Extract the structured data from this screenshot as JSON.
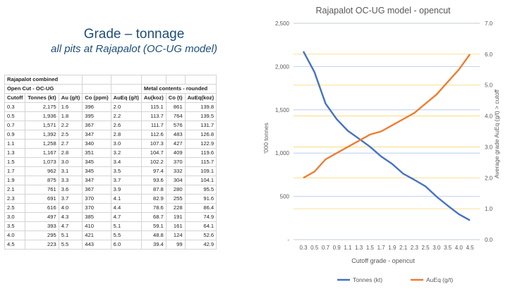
{
  "headline": {
    "title": "Grade – tonnage",
    "subtitle": "all pits at Rajapalot (OC-UG model)"
  },
  "table": {
    "section1": "Rajapalot combined",
    "section2": "Open Cut - OC-UG",
    "metal_header": "Metal contents - rounded",
    "columns": [
      "Cutoff",
      "Tonnes (kt)",
      "Au (g/t)",
      "Co (ppm)",
      "AuEq (g/t)",
      "Au(koz)",
      "Co (t)",
      "AuEq(koz)"
    ],
    "rows": [
      [
        "0.3",
        "2,175",
        "1.6",
        "396",
        "2.0",
        "115.1",
        "861",
        "139.8"
      ],
      [
        "0.5",
        "1,936",
        "1.8",
        "395",
        "2.2",
        "113.7",
        "764",
        "139.5"
      ],
      [
        "0.7",
        "1,571",
        "2.2",
        "367",
        "2.6",
        "111.7",
        "576",
        "131.7"
      ],
      [
        "0.9",
        "1,392",
        "2.5",
        "347",
        "2.8",
        "112.6",
        "483",
        "126.8"
      ],
      [
        "1.1",
        "1,258",
        "2.7",
        "340",
        "3.0",
        "107.3",
        "427",
        "122.9"
      ],
      [
        "1.3",
        "1,167",
        "2.8",
        "351",
        "3.2",
        "104.7",
        "409",
        "119.6"
      ],
      [
        "1.5",
        "1,073",
        "3.0",
        "345",
        "3.4",
        "102.2",
        "370",
        "115.7"
      ],
      [
        "1.7",
        "962",
        "3.1",
        "345",
        "3.5",
        "97.4",
        "332",
        "109.1"
      ],
      [
        "1.9",
        "875",
        "3.3",
        "347",
        "3.7",
        "93.6",
        "304",
        "104.1"
      ],
      [
        "2.1",
        "761",
        "3.6",
        "367",
        "3.9",
        "87.8",
        "280",
        "95.5"
      ],
      [
        "2.3",
        "691",
        "3.7",
        "370",
        "4.1",
        "82.9",
        "255",
        "91.6"
      ],
      [
        "2.5",
        "616",
        "4.0",
        "370",
        "4.4",
        "78.6",
        "228",
        "86.4"
      ],
      [
        "3.0",
        "497",
        "4.3",
        "385",
        "4.7",
        "68.7",
        "191",
        "74.9"
      ],
      [
        "3.5",
        "393",
        "4.7",
        "410",
        "5.1",
        "59.1",
        "161",
        "64.1"
      ],
      [
        "4.0",
        "295",
        "5.1",
        "421",
        "5.5",
        "48.8",
        "124",
        "52.6"
      ],
      [
        "4.5",
        "223",
        "5.5",
        "443",
        "6.0",
        "39.4",
        "99",
        "42.9"
      ]
    ]
  },
  "chart_data": {
    "type": "line",
    "title": "Rajapalot OC-UG model - opencut",
    "xlabel": "Cutoff grade - opencut",
    "ylabel": "'000 tonnes",
    "y2label": "Average grade AuEq (g/t) > cutoff",
    "categories": [
      "0.3",
      "0.5",
      "0.7",
      "0.9",
      "1.1",
      "1.3",
      "1.5",
      "1.7",
      "1.9",
      "2.1",
      "2.3",
      "2.5",
      "3.0",
      "3.5",
      "4.0",
      "4.5"
    ],
    "ylim": [
      0,
      2500
    ],
    "y_ticks": [
      "-",
      "500",
      "1,000",
      "1,500",
      "2,000",
      "2,500"
    ],
    "y2lim": [
      0,
      7
    ],
    "y2_ticks": [
      "0.0",
      "1.0",
      "2.0",
      "3.0",
      "4.0",
      "5.0",
      "6.0",
      "7.0"
    ],
    "grid": true,
    "legend_position": "bottom",
    "series": [
      {
        "name": "Tonnes (kt)",
        "axis": "left",
        "color": "#4472c4",
        "values": [
          2175,
          1936,
          1571,
          1392,
          1258,
          1167,
          1073,
          962,
          875,
          761,
          691,
          616,
          497,
          393,
          295,
          223
        ]
      },
      {
        "name": "AuEq (g/t)",
        "axis": "right",
        "color": "#ed7d31",
        "values": [
          2.0,
          2.2,
          2.6,
          2.8,
          3.0,
          3.2,
          3.4,
          3.5,
          3.7,
          3.9,
          4.1,
          4.4,
          4.7,
          5.1,
          5.5,
          6.0
        ]
      }
    ],
    "grid_colors": {
      "left": "#aec6ec",
      "right": "#f7d470"
    }
  }
}
